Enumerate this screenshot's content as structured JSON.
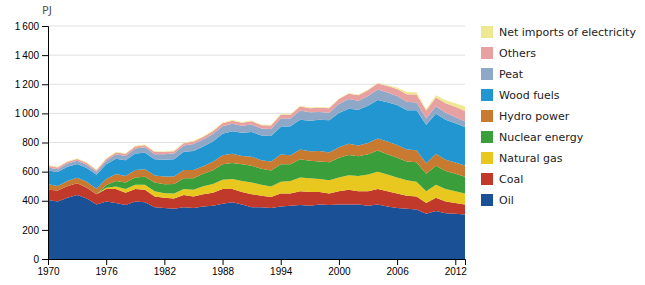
{
  "chart_data": {
    "type": "area",
    "stacked": true,
    "ylabel": "PJ",
    "x": [
      1970,
      1971,
      1972,
      1973,
      1974,
      1975,
      1976,
      1977,
      1978,
      1979,
      1980,
      1981,
      1982,
      1983,
      1984,
      1985,
      1986,
      1987,
      1988,
      1989,
      1990,
      1991,
      1992,
      1993,
      1994,
      1995,
      1996,
      1997,
      1998,
      1999,
      2000,
      2001,
      2002,
      2003,
      2004,
      2005,
      2006,
      2007,
      2008,
      2009,
      2010,
      2011,
      2012,
      2013
    ],
    "series": [
      {
        "name": "Oil",
        "color": "#1a5096",
        "values": [
          405,
          395,
          420,
          440,
          415,
          375,
          395,
          385,
          370,
          395,
          390,
          355,
          350,
          345,
          355,
          350,
          360,
          365,
          380,
          390,
          375,
          355,
          355,
          350,
          360,
          365,
          370,
          365,
          375,
          370,
          375,
          375,
          375,
          365,
          375,
          360,
          350,
          345,
          340,
          310,
          330,
          315,
          310,
          305
        ]
      },
      {
        "name": "Coal",
        "color": "#c0392b",
        "values": [
          70,
          75,
          80,
          80,
          75,
          70,
          85,
          95,
          85,
          85,
          85,
          75,
          70,
          70,
          85,
          80,
          85,
          90,
          100,
          90,
          85,
          90,
          80,
          75,
          90,
          85,
          95,
          95,
          85,
          80,
          90,
          100,
          90,
          100,
          105,
          105,
          100,
          90,
          90,
          75,
          90,
          80,
          75,
          70
        ]
      },
      {
        "name": "Natural gas",
        "color": "#e8c81e",
        "values": [
          0,
          0,
          0,
          0,
          0,
          0,
          10,
          18,
          25,
          30,
          35,
          35,
          32,
          35,
          40,
          45,
          55,
          60,
          65,
          70,
          75,
          80,
          75,
          72,
          80,
          85,
          95,
          95,
          90,
          90,
          95,
          100,
          105,
          115,
          120,
          115,
          110,
          105,
          100,
          80,
          90,
          85,
          80,
          75
        ]
      },
      {
        "name": "Nuclear energy",
        "color": "#3a9e3a",
        "values": [
          0,
          0,
          0,
          0,
          0,
          0,
          18,
          38,
          45,
          50,
          55,
          60,
          62,
          65,
          75,
          80,
          85,
          95,
          105,
          110,
          115,
          115,
          110,
          110,
          120,
          115,
          125,
          120,
          120,
          125,
          135,
          140,
          135,
          140,
          145,
          140,
          135,
          130,
          135,
          120,
          130,
          125,
          120,
          115
        ]
      },
      {
        "name": "Hydro power",
        "color": "#c87a30",
        "values": [
          38,
          32,
          35,
          38,
          40,
          38,
          42,
          48,
          45,
          52,
          52,
          48,
          52,
          52,
          57,
          57,
          52,
          57,
          62,
          62,
          57,
          62,
          58,
          62,
          67,
          62,
          67,
          65,
          72,
          67,
          72,
          77,
          75,
          77,
          82,
          87,
          87,
          82,
          82,
          72,
          82,
          77,
          77,
          77
        ]
      },
      {
        "name": "Wood fuels",
        "color": "#2196d0",
        "values": [
          95,
          95,
          98,
          95,
          95,
          95,
          100,
          105,
          108,
          112,
          112,
          112,
          115,
          118,
          125,
          130,
          135,
          140,
          148,
          155,
          160,
          170,
          170,
          175,
          190,
          200,
          205,
          210,
          215,
          220,
          235,
          240,
          245,
          255,
          265,
          270,
          275,
          270,
          275,
          265,
          275,
          275,
          270,
          265
        ]
      },
      {
        "name": "Peat",
        "color": "#8fa8c8",
        "values": [
          20,
          20,
          22,
          22,
          23,
          20,
          25,
          30,
          30,
          35,
          38,
          35,
          38,
          40,
          42,
          48,
          48,
          52,
          52,
          52,
          48,
          52,
          48,
          48,
          57,
          52,
          62,
          57,
          52,
          52,
          62,
          67,
          62,
          67,
          72,
          67,
          62,
          57,
          52,
          43,
          52,
          48,
          43,
          38
        ]
      },
      {
        "name": "Others",
        "color": "#e8a0a0",
        "values": [
          12,
          12,
          12,
          12,
          12,
          12,
          12,
          13,
          14,
          14,
          14,
          15,
          15,
          15,
          16,
          17,
          18,
          18,
          20,
          20,
          21,
          22,
          23,
          25,
          26,
          27,
          28,
          29,
          30,
          32,
          34,
          36,
          38,
          40,
          42,
          44,
          48,
          52,
          56,
          55,
          60,
          65,
          70,
          72
        ]
      },
      {
        "name": "Net imports of electricity",
        "color": "#f0e890",
        "values": [
          5,
          5,
          5,
          5,
          5,
          5,
          5,
          5,
          5,
          5,
          5,
          5,
          5,
          5,
          5,
          5,
          5,
          5,
          5,
          5,
          5,
          5,
          5,
          5,
          5,
          5,
          5,
          5,
          5,
          5,
          5,
          5,
          5,
          5,
          5,
          5,
          10,
          15,
          15,
          10,
          15,
          20,
          25,
          30
        ]
      }
    ],
    "xlim": [
      1970,
      2013
    ],
    "xticks": [
      1970,
      1976,
      1982,
      1988,
      1994,
      2000,
      2006,
      2012
    ],
    "ylim": [
      0,
      1600
    ],
    "yticks": [
      0,
      200,
      400,
      600,
      800,
      {
        "value": 1000,
        "label": "1 000"
      },
      {
        "value": 1200,
        "label": "1 200"
      },
      {
        "value": 1400,
        "label": "1 400"
      },
      {
        "value": 1600,
        "label": "1 600"
      }
    ],
    "grid": true,
    "legend": "right"
  }
}
